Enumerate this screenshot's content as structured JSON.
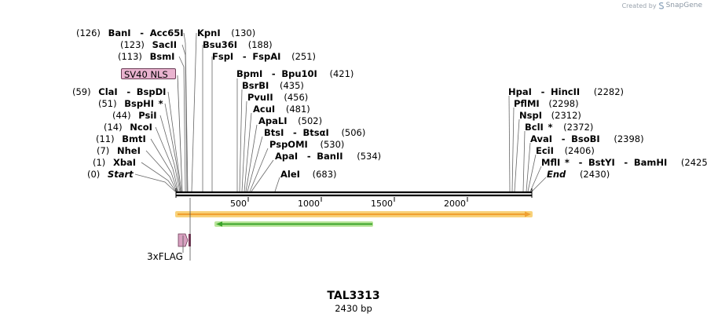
{
  "watermark": {
    "prefix": "Created by",
    "brand": "SnapGene"
  },
  "plasmid": {
    "name": "TAL3313",
    "length_label": "2430 bp"
  },
  "features": {
    "sv40_nls": "SV40 NLS",
    "flag": "3xFLAG"
  },
  "ruler_ticks": [
    "500",
    "1000",
    "1500",
    "2000"
  ],
  "sites_left": [
    {
      "pos": "(126)",
      "names": [
        "BanI",
        "Acc65I"
      ],
      "star": ""
    },
    {
      "pos": "(123)",
      "names": [
        "SacII"
      ],
      "star": ""
    },
    {
      "pos": "(113)",
      "names": [
        "BsmI"
      ],
      "star": ""
    },
    {
      "pos": "(59)",
      "names": [
        "ClaI",
        "BspDI"
      ],
      "star": ""
    },
    {
      "pos": "(51)",
      "names": [
        "BspHI"
      ],
      "star": "*"
    },
    {
      "pos": "(44)",
      "names": [
        "PsiI"
      ],
      "star": ""
    },
    {
      "pos": "(14)",
      "names": [
        "NcoI"
      ],
      "star": ""
    },
    {
      "pos": "(11)",
      "names": [
        "BmtI"
      ],
      "star": ""
    },
    {
      "pos": "(7)",
      "names": [
        "NheI"
      ],
      "star": ""
    },
    {
      "pos": "(1)",
      "names": [
        "XbaI"
      ],
      "star": ""
    },
    {
      "pos": "(0)",
      "names": [
        "Start"
      ],
      "star": ""
    }
  ],
  "sites_mid": [
    {
      "pos": "(130)",
      "names": [
        "KpnI"
      ]
    },
    {
      "pos": "(188)",
      "names": [
        "Bsu36I"
      ]
    },
    {
      "pos": "(251)",
      "names": [
        "FspI",
        "FspAI"
      ]
    },
    {
      "pos": "(421)",
      "names": [
        "BpmI",
        "Bpu10I"
      ]
    },
    {
      "pos": "(435)",
      "names": [
        "BsrBI"
      ]
    },
    {
      "pos": "(456)",
      "names": [
        "PvuII"
      ]
    },
    {
      "pos": "(481)",
      "names": [
        "AcuI"
      ]
    },
    {
      "pos": "(502)",
      "names": [
        "ApaLI"
      ]
    },
    {
      "pos": "(506)",
      "names": [
        "BtsI",
        "BtsαI"
      ]
    },
    {
      "pos": "(530)",
      "names": [
        "PspOMI"
      ]
    },
    {
      "pos": "(534)",
      "names": [
        "ApaI",
        "BanII"
      ]
    },
    {
      "pos": "(683)",
      "names": [
        "AleI"
      ]
    }
  ],
  "sites_right": [
    {
      "pos": "(2282)",
      "names": [
        "HpaI",
        "HincII"
      ],
      "star": ""
    },
    {
      "pos": "(2298)",
      "names": [
        "PflMI"
      ],
      "star": ""
    },
    {
      "pos": "(2312)",
      "names": [
        "NspI"
      ],
      "star": ""
    },
    {
      "pos": "(2372)",
      "names": [
        "BclI"
      ],
      "star": "*"
    },
    {
      "pos": "(2398)",
      "names": [
        "AvaI",
        "BsoBI"
      ],
      "star": ""
    },
    {
      "pos": "(2406)",
      "names": [
        "EciI"
      ],
      "star": ""
    },
    {
      "pos": "(2425)",
      "names": [
        "MflI",
        "BstYI",
        "BamHI"
      ],
      "star": "*"
    },
    {
      "pos": "(2430)",
      "names": [
        "End"
      ],
      "star": ""
    }
  ],
  "colors": {
    "orf_orange": "#f0a030",
    "orf_halo": "#f8d27a",
    "orf_green": "#39a329",
    "orf_green_halo": "#b9e59b",
    "feature_pink": "#d8a0c0",
    "flag_dark": "#7d2a53"
  }
}
